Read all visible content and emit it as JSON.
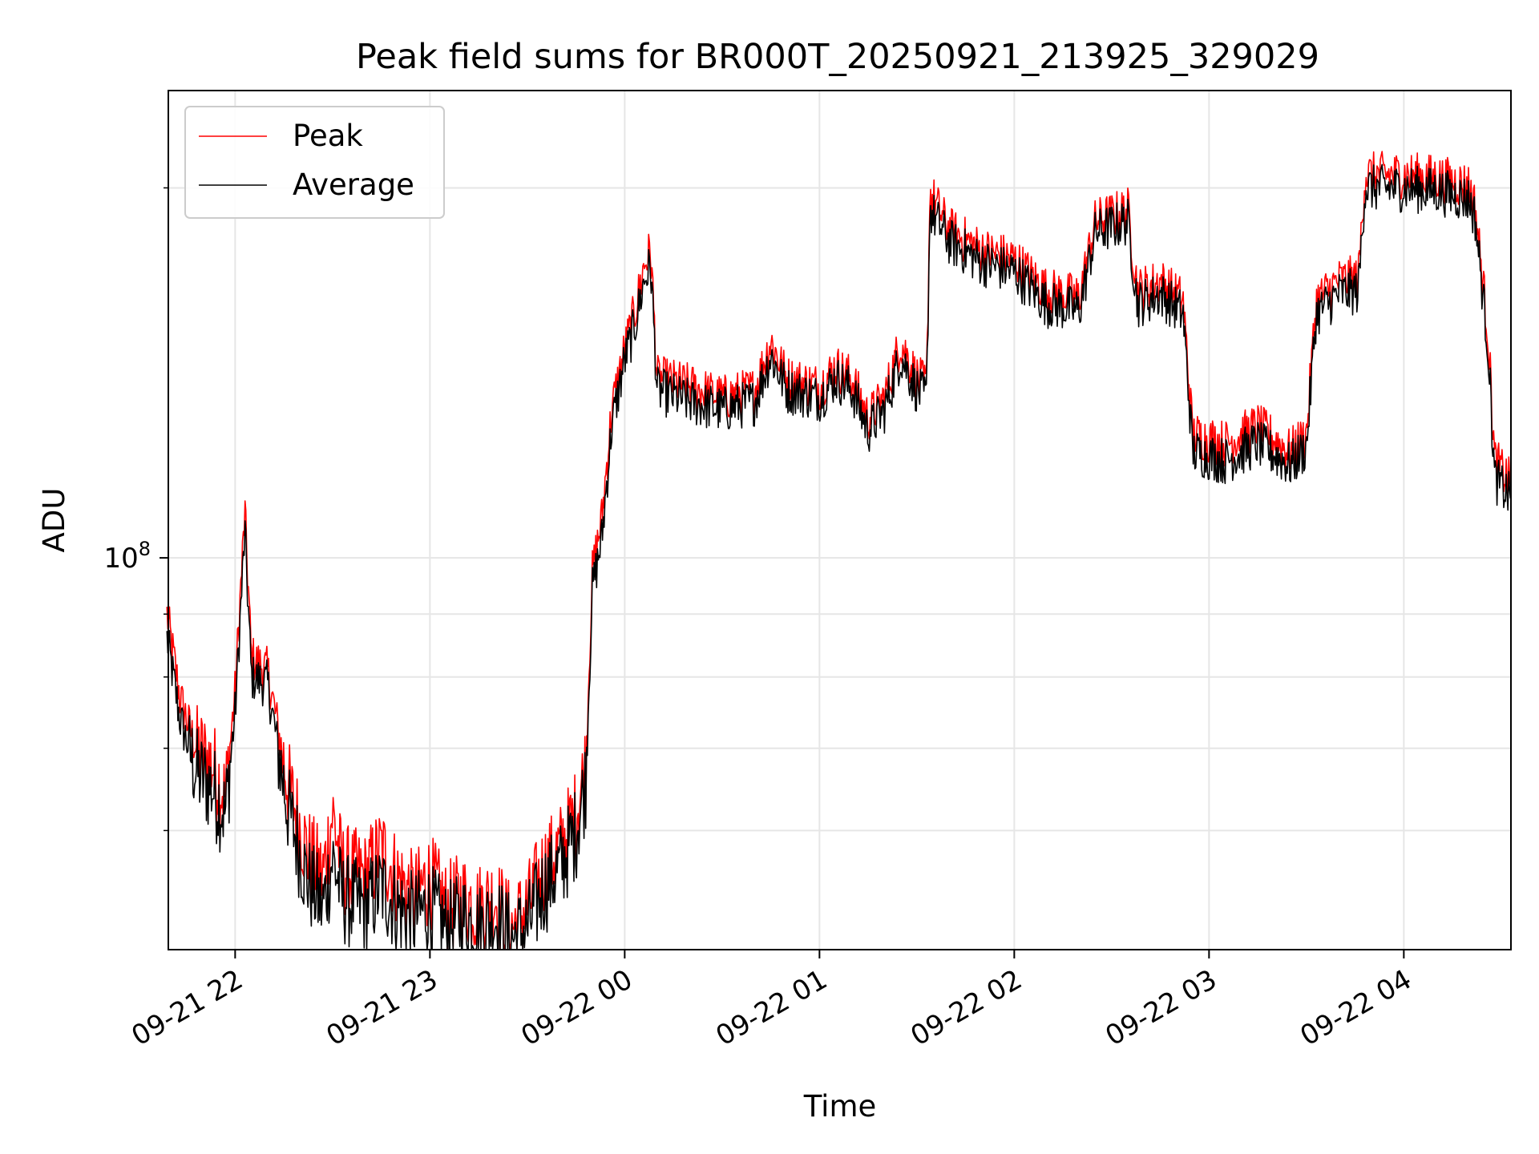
{
  "chart_data": {
    "type": "line",
    "title": "Peak field sums for BR000T_20250921_213925_329029",
    "xlabel": "Time",
    "ylabel": "ADU",
    "x_range": [
      "2025-09-21 21:39:25",
      "2025-09-22 04:33:00"
    ],
    "ylim": [
      48000000,
      240000000
    ],
    "yscale": "log",
    "grid": true,
    "legend_position": "upper left",
    "x_ticks": [
      "09-21 22",
      "09-21 23",
      "09-22 00",
      "09-22 01",
      "09-22 02",
      "09-22 03",
      "09-22 04"
    ],
    "y_major_tick": {
      "value": 100000000,
      "base": "10",
      "exponent": "8"
    },
    "y_minor_ticks": [
      60000000,
      70000000,
      80000000,
      90000000,
      200000000
    ],
    "series": [
      {
        "name": "Peak",
        "color": "#ff0000",
        "points": [
          [
            "2025-09-21 21:39",
            90000000
          ],
          [
            "2025-09-21 21:43",
            77000000
          ],
          [
            "2025-09-21 21:48",
            70000000
          ],
          [
            "2025-09-21 21:53",
            68000000
          ],
          [
            "2025-09-21 21:57",
            64000000
          ],
          [
            "2025-09-21 22:00",
            78000000
          ],
          [
            "2025-09-21 21:57",
            64000000
          ],
          [
            "2025-09-21 22:00",
            78000000
          ],
          [
            "2025-09-21 22:03",
            109000000
          ],
          [
            "2025-09-21 22:05",
            83000000
          ],
          [
            "2025-09-21 22:10",
            81000000
          ],
          [
            "2025-09-21 22:16",
            66000000
          ],
          [
            "2025-09-21 22:22",
            58000000
          ],
          [
            "2025-09-21 22:27",
            55000000
          ],
          [
            "2025-09-21 22:30",
            62000000
          ],
          [
            "2025-09-21 22:33",
            56000000
          ],
          [
            "2025-09-21 22:40",
            55000000
          ],
          [
            "2025-09-21 22:45",
            58000000
          ],
          [
            "2025-09-21 22:50",
            55000000
          ],
          [
            "2025-09-21 22:55",
            53000000
          ],
          [
            "2025-09-21 23:00",
            55000000
          ],
          [
            "2025-09-21 23:05",
            52000000
          ],
          [
            "2025-09-21 23:10",
            53000000
          ],
          [
            "2025-09-21 23:15",
            52000000
          ],
          [
            "2025-09-21 23:20",
            53000000
          ],
          [
            "2025-09-21 23:25",
            50000000
          ],
          [
            "2025-09-21 23:30",
            52000000
          ],
          [
            "2025-09-21 23:35",
            56000000
          ],
          [
            "2025-09-21 23:40",
            58000000
          ],
          [
            "2025-09-21 23:45",
            62000000
          ],
          [
            "2025-09-21 23:48",
            68000000
          ],
          [
            "2025-09-21 23:50",
            97000000
          ],
          [
            "2025-09-21 23:53",
            108000000
          ],
          [
            "2025-09-21 23:56",
            132000000
          ],
          [
            "2025-09-22 00:00",
            148000000
          ],
          [
            "2025-09-22 00:03",
            158000000
          ],
          [
            "2025-09-22 00:06",
            173000000
          ],
          [
            "2025-09-22 00:08",
            178000000
          ],
          [
            "2025-09-22 00:10",
            140000000
          ],
          [
            "2025-09-22 00:20",
            138000000
          ],
          [
            "2025-09-22 00:30",
            135000000
          ],
          [
            "2025-09-22 00:40",
            137000000
          ],
          [
            "2025-09-22 00:45",
            150000000
          ],
          [
            "2025-09-22 00:50",
            140000000
          ],
          [
            "2025-09-22 01:00",
            138000000
          ],
          [
            "2025-09-22 01:05",
            143000000
          ],
          [
            "2025-09-22 01:10",
            140000000
          ],
          [
            "2025-09-22 01:15",
            130000000
          ],
          [
            "2025-09-22 01:20",
            135000000
          ],
          [
            "2025-09-22 01:25",
            150000000
          ],
          [
            "2025-09-22 01:30",
            140000000
          ],
          [
            "2025-09-22 01:33",
            138000000
          ],
          [
            "2025-09-22 01:34",
            198000000
          ],
          [
            "2025-09-22 01:40",
            185000000
          ],
          [
            "2025-09-22 01:50",
            178000000
          ],
          [
            "2025-09-22 02:00",
            175000000
          ],
          [
            "2025-09-22 02:10",
            165000000
          ],
          [
            "2025-09-22 02:20",
            163000000
          ],
          [
            "2025-09-22 02:25",
            188000000
          ],
          [
            "2025-09-22 02:35",
            192000000
          ],
          [
            "2025-09-22 02:38",
            165000000
          ],
          [
            "2025-09-22 02:45",
            168000000
          ],
          [
            "2025-09-22 02:52",
            162000000
          ],
          [
            "2025-09-22 02:55",
            126000000
          ],
          [
            "2025-09-22 03:05",
            124000000
          ],
          [
            "2025-09-22 03:15",
            128000000
          ],
          [
            "2025-09-22 03:25",
            122000000
          ],
          [
            "2025-09-22 03:30",
            126000000
          ],
          [
            "2025-09-22 03:33",
            162000000
          ],
          [
            "2025-09-22 03:40",
            168000000
          ],
          [
            "2025-09-22 03:46",
            169000000
          ],
          [
            "2025-09-22 03:48",
            205000000
          ],
          [
            "2025-09-22 04:00",
            205000000
          ],
          [
            "2025-09-22 04:10",
            204000000
          ],
          [
            "2025-09-22 04:20",
            201000000
          ],
          [
            "2025-09-22 04:22",
            193000000
          ],
          [
            "2025-09-22 04:26",
            152000000
          ],
          [
            "2025-09-22 04:28",
            120000000
          ],
          [
            "2025-09-22 04:33",
            115000000
          ]
        ]
      },
      {
        "name": "Average",
        "color": "#000000",
        "points": [
          [
            "2025-09-21 21:39",
            86000000
          ],
          [
            "2025-09-21 21:43",
            74000000
          ],
          [
            "2025-09-21 21:48",
            67000000
          ],
          [
            "2025-09-21 21:53",
            65000000
          ],
          [
            "2025-09-21 21:57",
            62000000
          ],
          [
            "2025-09-21 22:00",
            75000000
          ],
          [
            "2025-09-21 22:03",
            105000000
          ],
          [
            "2025-09-21 22:05",
            80000000
          ],
          [
            "2025-09-21 22:10",
            79000000
          ],
          [
            "2025-09-21 22:16",
            63000000
          ],
          [
            "2025-09-21 22:22",
            55000000
          ],
          [
            "2025-09-21 22:27",
            52000000
          ],
          [
            "2025-09-21 22:30",
            57000000
          ],
          [
            "2025-09-21 22:33",
            53000000
          ],
          [
            "2025-09-21 22:40",
            52000000
          ],
          [
            "2025-09-21 22:45",
            54000000
          ],
          [
            "2025-09-21 22:50",
            52000000
          ],
          [
            "2025-09-21 22:55",
            51000000
          ],
          [
            "2025-09-21 23:00",
            52000000
          ],
          [
            "2025-09-21 23:05",
            50000000
          ],
          [
            "2025-09-21 23:10",
            51000000
          ],
          [
            "2025-09-21 23:15",
            50000000
          ],
          [
            "2025-09-21 23:20",
            51000000
          ],
          [
            "2025-09-21 23:25",
            49000000
          ],
          [
            "2025-09-21 23:30",
            50000000
          ],
          [
            "2025-09-21 23:35",
            54000000
          ],
          [
            "2025-09-21 23:40",
            56000000
          ],
          [
            "2025-09-21 23:45",
            60000000
          ],
          [
            "2025-09-21 23:48",
            66000000
          ],
          [
            "2025-09-21 23:50",
            94000000
          ],
          [
            "2025-09-21 23:53",
            104000000
          ],
          [
            "2025-09-21 23:56",
            128000000
          ],
          [
            "2025-09-22 00:00",
            145000000
          ],
          [
            "2025-09-22 00:03",
            154000000
          ],
          [
            "2025-09-22 00:06",
            168000000
          ],
          [
            "2025-09-22 00:08",
            173000000
          ],
          [
            "2025-09-22 00:10",
            137000000
          ],
          [
            "2025-09-22 00:20",
            134000000
          ],
          [
            "2025-09-22 00:30",
            132000000
          ],
          [
            "2025-09-22 00:40",
            134000000
          ],
          [
            "2025-09-22 00:45",
            146000000
          ],
          [
            "2025-09-22 00:50",
            137000000
          ],
          [
            "2025-09-22 01:00",
            135000000
          ],
          [
            "2025-09-22 01:05",
            140000000
          ],
          [
            "2025-09-22 01:10",
            137000000
          ],
          [
            "2025-09-22 01:15",
            127000000
          ],
          [
            "2025-09-22 01:20",
            132000000
          ],
          [
            "2025-09-22 01:25",
            146000000
          ],
          [
            "2025-09-22 01:30",
            137000000
          ],
          [
            "2025-09-22 01:33",
            135000000
          ],
          [
            "2025-09-22 01:34",
            192000000
          ],
          [
            "2025-09-22 01:40",
            181000000
          ],
          [
            "2025-09-22 01:50",
            174000000
          ],
          [
            "2025-09-22 02:00",
            171000000
          ],
          [
            "2025-09-22 02:10",
            161000000
          ],
          [
            "2025-09-22 02:20",
            159000000
          ],
          [
            "2025-09-22 02:25",
            184000000
          ],
          [
            "2025-09-22 02:35",
            188000000
          ],
          [
            "2025-09-22 02:38",
            161000000
          ],
          [
            "2025-09-22 02:45",
            164000000
          ],
          [
            "2025-09-22 02:52",
            158000000
          ],
          [
            "2025-09-22 02:55",
            122000000
          ],
          [
            "2025-09-22 03:05",
            120000000
          ],
          [
            "2025-09-22 03:15",
            124000000
          ],
          [
            "2025-09-22 03:25",
            119000000
          ],
          [
            "2025-09-22 03:30",
            123000000
          ],
          [
            "2025-09-22 03:33",
            158000000
          ],
          [
            "2025-09-22 03:40",
            164000000
          ],
          [
            "2025-09-22 03:46",
            165000000
          ],
          [
            "2025-09-22 03:48",
            200000000
          ],
          [
            "2025-09-22 04:00",
            200000000
          ],
          [
            "2025-09-22 04:10",
            199000000
          ],
          [
            "2025-09-22 04:20",
            196000000
          ],
          [
            "2025-09-22 04:22",
            189000000
          ],
          [
            "2025-09-22 04:26",
            148000000
          ],
          [
            "2025-09-22 04:28",
            116000000
          ],
          [
            "2025-09-22 04:33",
            112000000
          ]
        ]
      }
    ]
  }
}
